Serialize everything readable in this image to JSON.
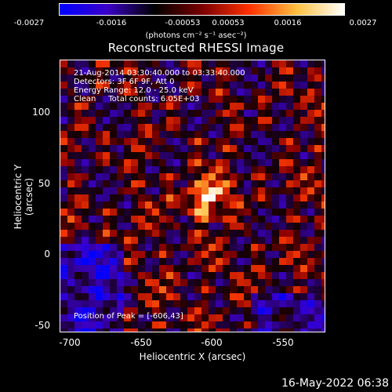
{
  "colorbar": {
    "ticks": [
      "-0.0027",
      "-0.0016",
      "-0.00053",
      "0.00053",
      "0.0016",
      "0.0027"
    ],
    "unit": "(photons cm⁻² s⁻¹ asec⁻²)",
    "gradient": [
      "#0000ff",
      "#3a00c8",
      "#000000",
      "#7a0000",
      "#ff3000",
      "#ffc040",
      "#ffffff"
    ]
  },
  "chart_data": {
    "type": "heatmap",
    "title": "Reconstructed RHESSI Image",
    "xlabel": "Heliocentric X (arcsec)",
    "ylabel": "Heliocentric Y (arcsec)",
    "xlim": [
      -708,
      -520
    ],
    "ylim": [
      -53,
      140
    ],
    "x_ticks": [
      -700,
      -650,
      -600,
      -550
    ],
    "y_ticks": [
      -50,
      0,
      50,
      100
    ],
    "peak": [
      -606,
      43
    ],
    "vmin": -0.0027,
    "vmax": 0.0027
  },
  "info": {
    "line1": "21-Aug-2014 03:30:40.000 to 03:33:40.000",
    "line2": "Detectors: 3F 6F 9F, Att 0",
    "line3": "Energy Range: 12.0 - 25.0 keV",
    "line4": "Clean     Total counts: 6.05E+03",
    "peak_text": "Position of Peak = [-606,43]"
  },
  "footer": "16-May-2022 06:38"
}
